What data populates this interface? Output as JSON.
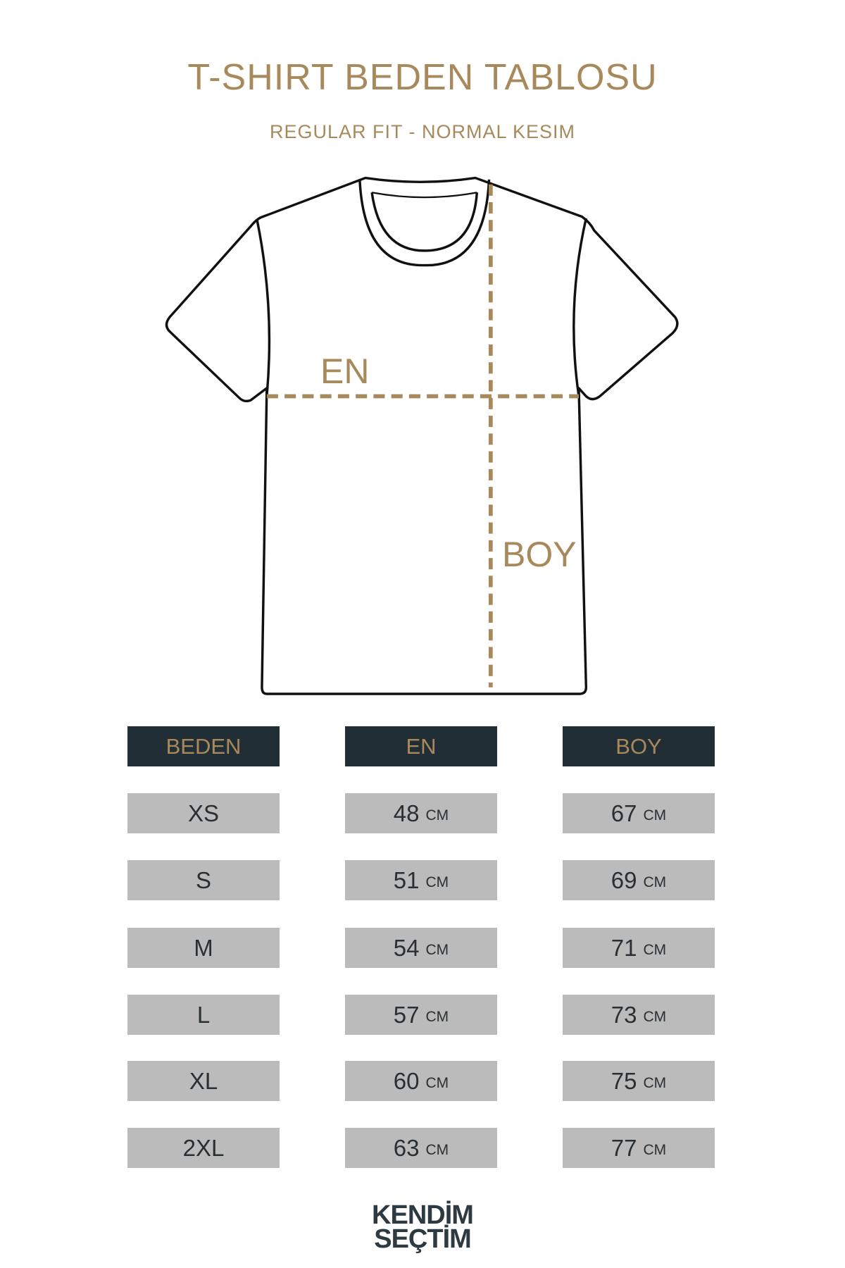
{
  "title": "T-SHIRT BEDEN TABLOSU",
  "subtitle": "REGULAR FIT - NORMAL KESIM",
  "diagram": {
    "width_label": "EN",
    "length_label": "BOY"
  },
  "table": {
    "headers": [
      "BEDEN",
      "EN",
      "BOY"
    ],
    "unit": "CM",
    "rows": [
      {
        "size": "XS",
        "en": "48",
        "boy": "67"
      },
      {
        "size": "S",
        "en": "51",
        "boy": "69"
      },
      {
        "size": "M",
        "en": "54",
        "boy": "71"
      },
      {
        "size": "L",
        "en": "57",
        "boy": "73"
      },
      {
        "size": "XL",
        "en": "60",
        "boy": "75"
      },
      {
        "size": "2XL",
        "en": "63",
        "boy": "77"
      }
    ]
  },
  "logo": {
    "line1": "KENDİM",
    "line2": "SEÇTİM"
  },
  "colors": {
    "accent": "#a8895c",
    "header_bg": "#222e36",
    "cell_bg": "#bbbbbb"
  }
}
